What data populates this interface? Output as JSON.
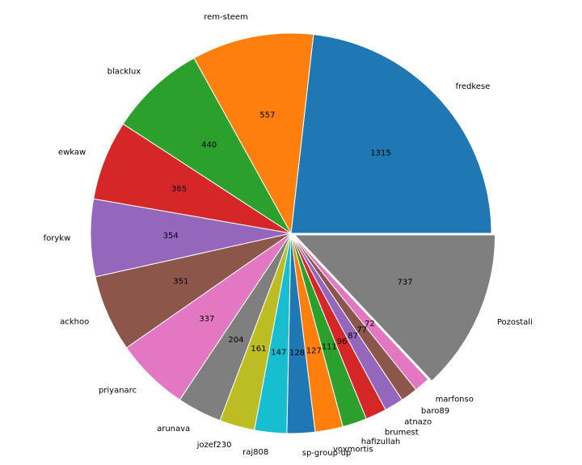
{
  "chart_data": {
    "type": "pie",
    "title": "",
    "start_angle_deg": 0,
    "counterclock": true,
    "explode_last_fraction": 0.02,
    "labels": [
      "fredkese",
      "rem-steem",
      "blacklux",
      "ewkaw",
      "forykw",
      "ackhoo",
      "priyanarc",
      "arunava",
      "jozef230",
      "raj808",
      "sp-group-up",
      "voxmortis",
      "hafizullah",
      "brumest",
      "atnazo",
      "baro89",
      "marfonso",
      "Pozostali"
    ],
    "values": [
      1315,
      557,
      440,
      365,
      354,
      351,
      337,
      204,
      161,
      147,
      128,
      127,
      111,
      96,
      87,
      77,
      72,
      737
    ],
    "value_labels": [
      "1315",
      "557",
      "440",
      "365",
      "354",
      "351",
      "337",
      "204",
      "161",
      "147",
      "128",
      "127",
      "111",
      "96",
      "87",
      "77",
      "72",
      "737"
    ],
    "colors": [
      "#1f77b4",
      "#ff7f0e",
      "#2ca02c",
      "#d62728",
      "#9467bd",
      "#8c564b",
      "#e377c2",
      "#7f7f7f",
      "#bcbd22",
      "#17becf",
      "#1f77b4",
      "#ff7f0e",
      "#2ca02c",
      "#d62728",
      "#9467bd",
      "#8c564b",
      "#e377c2",
      "#7f7f7f"
    ]
  }
}
